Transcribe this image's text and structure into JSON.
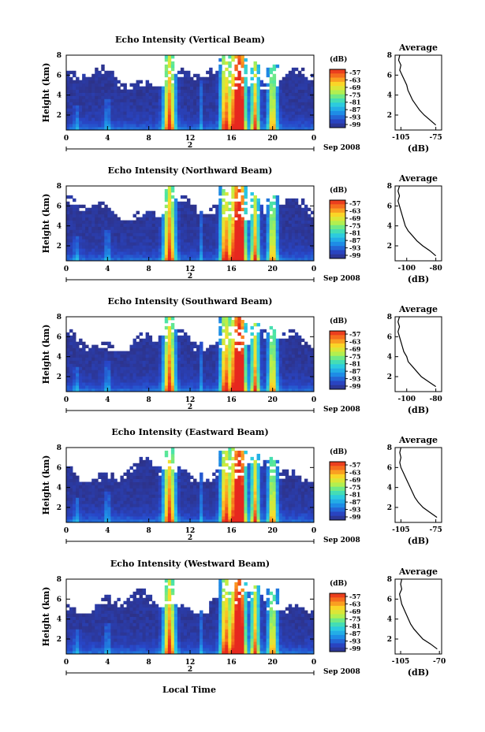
{
  "figure": {
    "xlabel": "Local Time",
    "date_label": "Sep 2008",
    "colorbar_unit": "(dB)",
    "colorbar_ticks": [
      "-57",
      "-63",
      "-69",
      "-75",
      "-81",
      "-87",
      "-93",
      "-99"
    ]
  },
  "chart_data": [
    {
      "type": "heatmap",
      "title": "Echo Intensity (Vertical Beam)",
      "ylabel": "Height (km)",
      "x_ticks": [
        "0",
        "4",
        "8",
        "12",
        "16",
        "20",
        "0"
      ],
      "xlim": [
        0,
        24
      ],
      "y_ticks": [
        "2",
        "4",
        "6",
        "8"
      ],
      "ylim": [
        0.5,
        8
      ],
      "day_marker": "2",
      "date_label": "Sep 2008",
      "colorbar": {
        "unit": "(dB)",
        "range": [
          -99,
          -57
        ]
      },
      "profile": {
        "title": "Average",
        "xlabel": "(dB)",
        "x_ticks": [
          "-105",
          "-75"
        ],
        "xlim": [
          -110,
          -70
        ],
        "y_ticks": [
          "2",
          "4",
          "6",
          "8"
        ],
        "ylim": [
          0.5,
          8
        ],
        "height": [
          1,
          1.5,
          2,
          2.5,
          3,
          3.5,
          4,
          4.5,
          5,
          5.5,
          6,
          6.5,
          7,
          7.5,
          8
        ],
        "value": [
          -75,
          -80,
          -85,
          -89,
          -92,
          -95,
          -97,
          -99,
          -100,
          -102,
          -104,
          -106,
          -105,
          -107,
          -106
        ]
      }
    },
    {
      "type": "heatmap",
      "title": "Echo Intensity (Northward Beam)",
      "ylabel": "Height (km)",
      "x_ticks": [
        "0",
        "4",
        "8",
        "12",
        "16",
        "20",
        "0"
      ],
      "xlim": [
        0,
        24
      ],
      "y_ticks": [
        "2",
        "4",
        "6",
        "8"
      ],
      "ylim": [
        0.5,
        8
      ],
      "day_marker": "2",
      "date_label": "Sep 2008",
      "colorbar": {
        "unit": "(dB)",
        "range": [
          -99,
          -57
        ]
      },
      "profile": {
        "title": "Average",
        "xlabel": "(dB)",
        "x_ticks": [
          "-100",
          "-80"
        ],
        "xlim": [
          -108,
          -76
        ],
        "y_ticks": [
          "2",
          "4",
          "6",
          "8"
        ],
        "ylim": [
          0.5,
          8
        ],
        "height": [
          1,
          1.5,
          2,
          2.5,
          3,
          3.5,
          4,
          4.5,
          5,
          5.5,
          6,
          6.5,
          7,
          7.5,
          8
        ],
        "value": [
          -80,
          -84,
          -89,
          -93,
          -96,
          -99,
          -101,
          -102,
          -103,
          -104,
          -105,
          -106,
          -105,
          -106,
          -105
        ]
      }
    },
    {
      "type": "heatmap",
      "title": "Echo Intensity (Southward Beam)",
      "ylabel": "Height (km)",
      "x_ticks": [
        "0",
        "4",
        "8",
        "12",
        "16",
        "20",
        "0"
      ],
      "xlim": [
        0,
        24
      ],
      "y_ticks": [
        "2",
        "4",
        "6",
        "8"
      ],
      "ylim": [
        0.5,
        8
      ],
      "day_marker": "2",
      "date_label": "Sep 2008",
      "colorbar": {
        "unit": "(dB)",
        "range": [
          -99,
          -57
        ]
      },
      "profile": {
        "title": "Average",
        "xlabel": "(dB)",
        "x_ticks": [
          "-100",
          "-80"
        ],
        "xlim": [
          -108,
          -76
        ],
        "y_ticks": [
          "2",
          "4",
          "6",
          "8"
        ],
        "ylim": [
          0.5,
          8
        ],
        "height": [
          1,
          1.5,
          2,
          2.5,
          3,
          3.5,
          4,
          4.5,
          5,
          5.5,
          6,
          6.5,
          7,
          7.5,
          8
        ],
        "value": [
          -80,
          -85,
          -90,
          -93,
          -96,
          -99,
          -100,
          -102,
          -103,
          -104,
          -105,
          -106,
          -105,
          -106,
          -105
        ]
      }
    },
    {
      "type": "heatmap",
      "title": "Echo Intensity (Eastward Beam)",
      "ylabel": "Height (km)",
      "x_ticks": [
        "0",
        "4",
        "8",
        "12",
        "16",
        "20",
        "0"
      ],
      "xlim": [
        0,
        24
      ],
      "y_ticks": [
        "2",
        "4",
        "6",
        "8"
      ],
      "ylim": [
        0.5,
        8
      ],
      "day_marker": "2",
      "date_label": "Sep 2008",
      "colorbar": {
        "unit": "(dB)",
        "range": [
          -99,
          -57
        ]
      },
      "profile": {
        "title": "Average",
        "xlabel": "(dB)",
        "x_ticks": [
          "-105",
          "-75"
        ],
        "xlim": [
          -110,
          -70
        ],
        "y_ticks": [
          "2",
          "4",
          "6",
          "8"
        ],
        "ylim": [
          0.5,
          8
        ],
        "height": [
          1,
          1.5,
          2,
          2.5,
          3,
          3.5,
          4,
          4.5,
          5,
          5.5,
          6,
          6.5,
          7,
          7.5,
          8
        ],
        "value": [
          -74,
          -80,
          -86,
          -90,
          -93,
          -95,
          -97,
          -99,
          -101,
          -103,
          -105,
          -106,
          -105,
          -106,
          -105
        ]
      }
    },
    {
      "type": "heatmap",
      "title": "Echo Intensity (Westward Beam)",
      "ylabel": "Height (km)",
      "x_ticks": [
        "0",
        "4",
        "8",
        "12",
        "16",
        "20",
        "0"
      ],
      "xlim": [
        0,
        24
      ],
      "y_ticks": [
        "2",
        "4",
        "6",
        "8"
      ],
      "ylim": [
        0.5,
        8
      ],
      "day_marker": "2",
      "date_label": "Sep 2008",
      "colorbar": {
        "unit": "(dB)",
        "range": [
          -99,
          -57
        ]
      },
      "profile": {
        "title": "Average",
        "xlabel": "(dB)",
        "x_ticks": [
          "-105",
          "-70"
        ],
        "xlim": [
          -110,
          -68
        ],
        "y_ticks": [
          "2",
          "4",
          "6",
          "8"
        ],
        "ylim": [
          0.5,
          8
        ],
        "height": [
          1,
          1.5,
          2,
          2.5,
          3,
          3.5,
          4,
          4.5,
          5,
          5.5,
          6,
          6.5,
          7,
          7.5,
          8
        ],
        "value": [
          -72,
          -78,
          -85,
          -89,
          -93,
          -96,
          -98,
          -100,
          -102,
          -104,
          -105,
          -106,
          -104,
          -105,
          -104
        ]
      }
    }
  ]
}
